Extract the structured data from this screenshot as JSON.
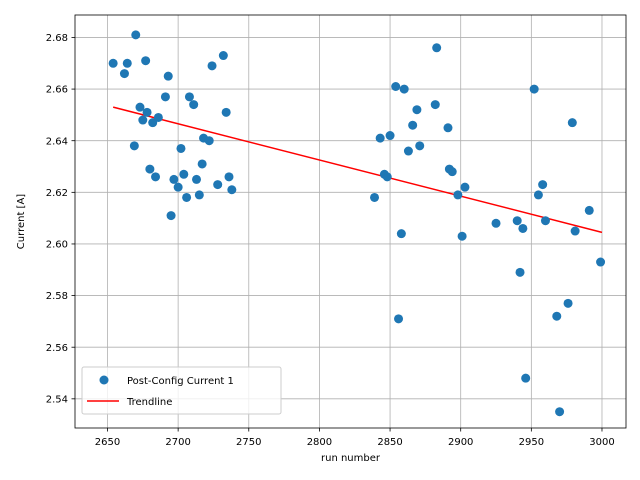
{
  "chart_data": {
    "type": "scatter",
    "xlabel": "run number",
    "ylabel": "Current [A]",
    "xlim": [
      2627,
      3017
    ],
    "ylim": [
      2.5287,
      2.6887
    ],
    "xticks": [
      2650,
      2700,
      2750,
      2800,
      2850,
      2900,
      2950,
      3000
    ],
    "yticks": [
      2.54,
      2.56,
      2.58,
      2.6,
      2.62,
      2.64,
      2.66,
      2.68
    ],
    "grid": true,
    "legend_position": "lower-left",
    "series": [
      {
        "name": "Post-Config Current 1",
        "kind": "points",
        "color": "#1f77b4",
        "x": [
          2654,
          2662,
          2664,
          2669,
          2670,
          2673,
          2675,
          2677,
          2678,
          2680,
          2682,
          2684,
          2686,
          2691,
          2693,
          2695,
          2697,
          2700,
          2702,
          2704,
          2706,
          2708,
          2711,
          2713,
          2715,
          2717,
          2718,
          2722,
          2724,
          2728,
          2732,
          2734,
          2736,
          2738,
          2839,
          2843,
          2846,
          2848,
          2850,
          2854,
          2856,
          2858,
          2860,
          2863,
          2866,
          2869,
          2871,
          2882,
          2883,
          2891,
          2892,
          2894,
          2898,
          2901,
          2903,
          2925,
          2940,
          2942,
          2944,
          2946,
          2952,
          2955,
          2958,
          2960,
          2968,
          2970,
          2976,
          2979,
          2981,
          2991,
          2999
        ],
        "y": [
          2.67,
          2.666,
          2.67,
          2.638,
          2.681,
          2.653,
          2.648,
          2.671,
          2.651,
          2.629,
          2.647,
          2.626,
          2.649,
          2.657,
          2.665,
          2.611,
          2.625,
          2.622,
          2.637,
          2.627,
          2.618,
          2.657,
          2.654,
          2.625,
          2.619,
          2.631,
          2.641,
          2.64,
          2.669,
          2.623,
          2.673,
          2.651,
          2.626,
          2.621,
          2.618,
          2.641,
          2.627,
          2.626,
          2.642,
          2.661,
          2.571,
          2.604,
          2.66,
          2.636,
          2.646,
          2.652,
          2.638,
          2.654,
          2.676,
          2.645,
          2.629,
          2.628,
          2.619,
          2.603,
          2.622,
          2.608,
          2.609,
          2.589,
          2.606,
          2.548,
          2.66,
          2.619,
          2.623,
          2.609,
          2.572,
          2.535,
          2.577,
          2.647,
          2.605,
          2.613,
          2.593
        ]
      },
      {
        "name": "Trendline",
        "kind": "line",
        "color": "#ff0000",
        "x": [
          2654,
          3000
        ],
        "y": [
          2.653,
          2.6045
        ]
      }
    ]
  }
}
